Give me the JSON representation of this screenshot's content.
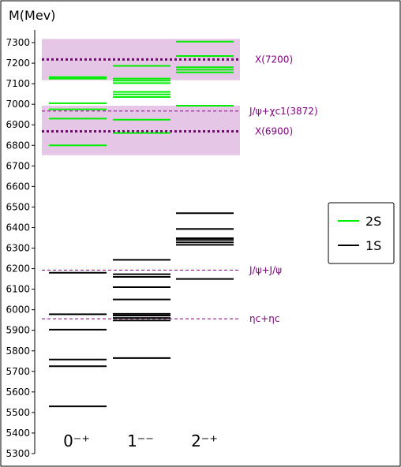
{
  "chart_data": {
    "type": "level-diagram",
    "title": "",
    "ylabel": "M(Mev)",
    "ylim": [
      5300,
      7350
    ],
    "yticks": [
      5300,
      5400,
      5500,
      5600,
      5700,
      5800,
      5900,
      6000,
      6100,
      6200,
      6300,
      6400,
      6500,
      6600,
      6700,
      6800,
      6900,
      7000,
      7100,
      7200,
      7300
    ],
    "categories": [
      "0⁻⁺",
      "1⁻⁻",
      "2⁻⁺"
    ],
    "series": [
      {
        "name": "1S",
        "color": "#000000",
        "levels": [
          [
            5530,
            5725,
            5758,
            5903,
            5978,
            6180
          ],
          [
            5765,
            5948,
            5960,
            5972,
            5980,
            6050,
            6110,
            6160,
            6173,
            6243
          ],
          [
            6150,
            6316,
            6328,
            6340,
            6348,
            6393,
            6470
          ]
        ]
      },
      {
        "name": "2S",
        "color": "#00ee00",
        "levels": [
          [
            6800,
            6930,
            6975,
            7005,
            7125,
            7132
          ],
          [
            6860,
            6925,
            7035,
            7048,
            7060,
            7103,
            7115,
            7125,
            7187
          ],
          [
            6993,
            7155,
            7168,
            7180,
            7235,
            7305
          ]
        ]
      }
    ],
    "bands": [
      {
        "from": 6752,
        "to": 6993
      },
      {
        "from": 7117,
        "to": 7318
      }
    ],
    "reference_lines": [
      {
        "value": 7218,
        "label": "X(7200)",
        "style": "dotted"
      },
      {
        "value": 6967,
        "label": "J/ψ+χc1(3872)",
        "style": "dashed"
      },
      {
        "value": 6868,
        "label": "X(6900)",
        "style": "dotted"
      },
      {
        "value": 6193,
        "label": "J/ψ+J/ψ",
        "style": "dashed"
      },
      {
        "value": 5956,
        "label": "ηc+ηc",
        "style": "dashed"
      }
    ],
    "legend": {
      "position": "right",
      "entries": [
        "2S",
        "1S"
      ]
    }
  },
  "colors": {
    "band": "#e6c6e6",
    "reference": "#800080",
    "axis": "#000000"
  }
}
